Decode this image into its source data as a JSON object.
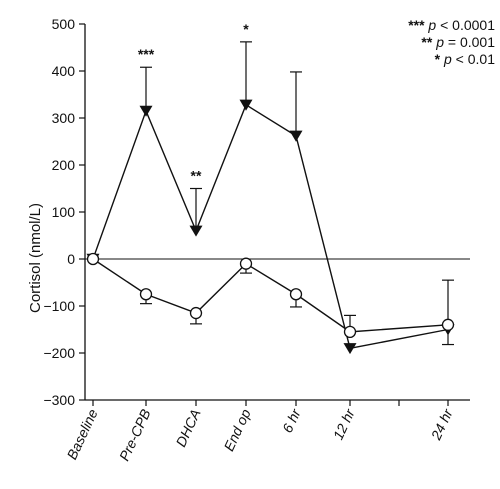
{
  "chart_data": {
    "type": "line",
    "title": "",
    "xlabel": "",
    "ylabel": "Cortisol (nmol/L)",
    "ylim": [
      -300,
      500
    ],
    "yticks": [
      500,
      400,
      300,
      200,
      100,
      0,
      -100,
      -200,
      -300
    ],
    "zero_reference_line": true,
    "x_positions": [
      0,
      1,
      2,
      3,
      4,
      5,
      7
    ],
    "categories": [
      "Baseline",
      "Pre-CPB",
      "DHCA",
      "End op",
      "6 hr",
      "12 hr",
      "24 hr"
    ],
    "series": [
      {
        "marker": "filled-triangle-down",
        "values": [
          0,
          315,
          60,
          328,
          262,
          -190,
          -150
        ],
        "error_upper": [
          null,
          408,
          150,
          462,
          398,
          null,
          null
        ],
        "error_lower": [
          null,
          null,
          null,
          null,
          null,
          null,
          -182
        ],
        "significance": [
          "",
          "***",
          "**",
          "*",
          "",
          "",
          ""
        ]
      },
      {
        "marker": "open-circle",
        "values": [
          0,
          -75,
          -115,
          -10,
          -75,
          -155,
          -140
        ],
        "error_upper": [
          null,
          null,
          null,
          null,
          null,
          -120,
          -45
        ],
        "error_lower": [
          null,
          -95,
          -138,
          -30,
          -102,
          null,
          null
        ]
      }
    ],
    "legend": {
      "position": "top-right",
      "entries": [
        {
          "stars": "***",
          "p": "p",
          "rel": "< 0.0001"
        },
        {
          "stars": "**",
          "p": "p",
          "rel": "= 0.001"
        },
        {
          "stars": "*",
          "p": "p",
          "rel": "< 0.01"
        }
      ]
    },
    "grid": false
  }
}
